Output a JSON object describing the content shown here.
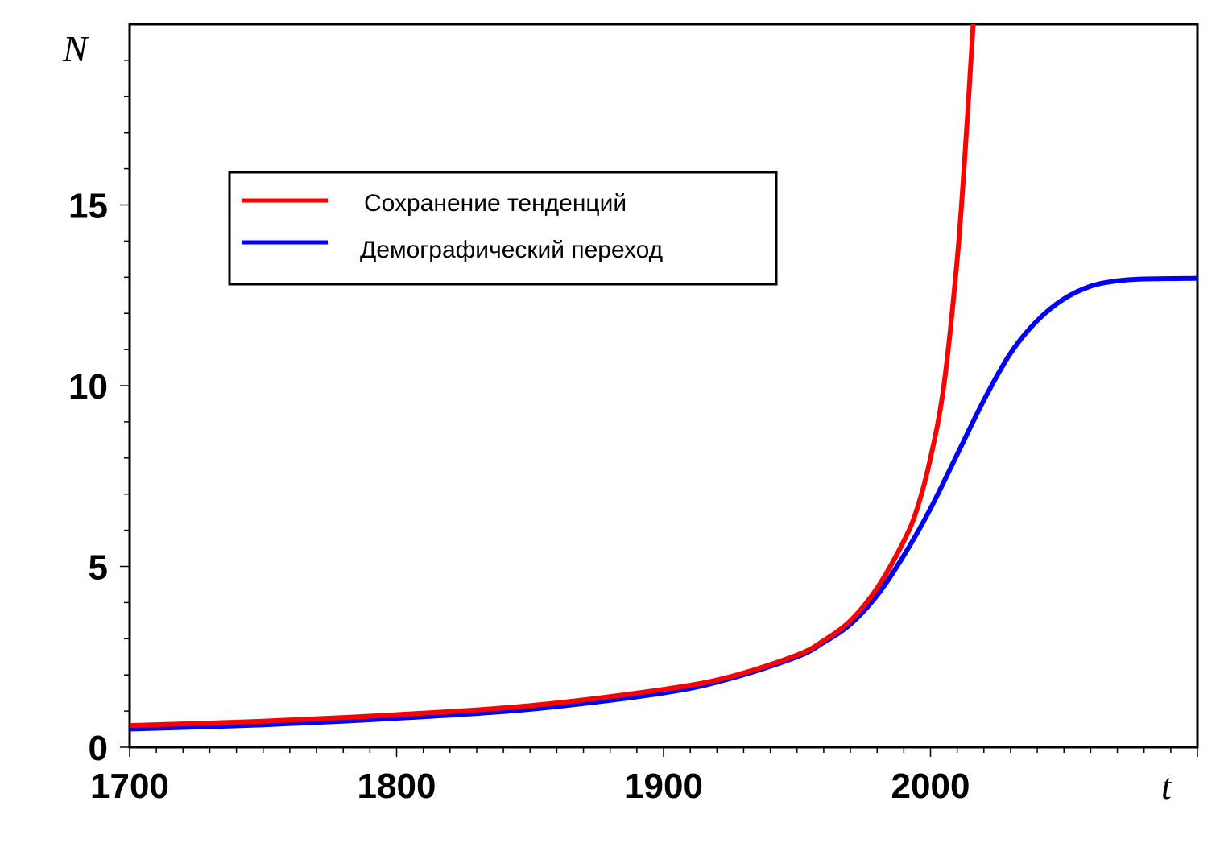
{
  "chart_data": {
    "type": "line",
    "title": "",
    "xlabel": "t",
    "ylabel": "N",
    "xlim": [
      1700,
      2100
    ],
    "ylim": [
      0,
      20
    ],
    "x_ticks": [
      1700,
      1800,
      1900,
      2000
    ],
    "y_ticks": [
      0,
      5,
      10,
      15
    ],
    "grid": false,
    "legend_position": "upper-left",
    "series": [
      {
        "name": "Сохранение тенденций",
        "color": "#ff0000",
        "x": [
          1700,
          1750,
          1800,
          1850,
          1900,
          1925,
          1950,
          1960,
          1970,
          1980,
          1990,
          1995,
          2000,
          2005,
          2010,
          2013,
          2016
        ],
        "y": [
          0.6,
          0.72,
          0.9,
          1.15,
          1.6,
          1.95,
          2.55,
          2.95,
          3.5,
          4.4,
          5.7,
          6.6,
          8.0,
          10.0,
          13.5,
          16.5,
          20
        ]
      },
      {
        "name": "Демографический переход",
        "color": "#0000ff",
        "x": [
          1700,
          1750,
          1800,
          1850,
          1900,
          1925,
          1950,
          1960,
          1970,
          1980,
          1990,
          2000,
          2010,
          2020,
          2030,
          2040,
          2050,
          2060,
          2070,
          2080,
          2100
        ],
        "y": [
          0.5,
          0.62,
          0.8,
          1.05,
          1.5,
          1.9,
          2.5,
          2.9,
          3.4,
          4.2,
          5.3,
          6.6,
          8.1,
          9.6,
          10.9,
          11.8,
          12.4,
          12.75,
          12.9,
          12.95,
          12.97
        ]
      }
    ]
  }
}
